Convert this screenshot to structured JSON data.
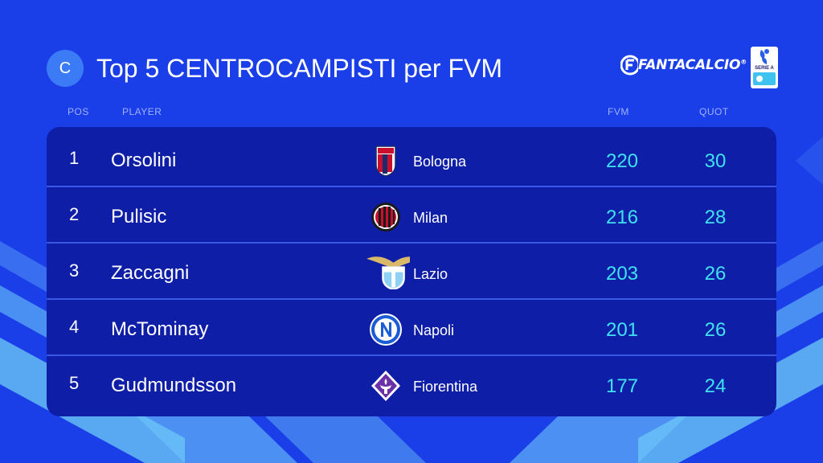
{
  "header": {
    "badge_letter": "C",
    "title": "Top 5 CENTROCAMPISTI per FVM",
    "brand_name": "FANTACALCIO",
    "brand_reg": "®",
    "league_badge_text": "SERIE A"
  },
  "columns": {
    "pos": "POS",
    "player": "PLAYER",
    "fvm": "FVM",
    "quot": "QUOT"
  },
  "rows": [
    {
      "pos": "1",
      "player": "Orsolini",
      "team": "Bologna",
      "crest": "bologna-crest-icon",
      "fvm": "220",
      "quot": "30"
    },
    {
      "pos": "2",
      "player": "Pulisic",
      "team": "Milan",
      "crest": "milan-crest-icon",
      "fvm": "216",
      "quot": "28"
    },
    {
      "pos": "3",
      "player": "Zaccagni",
      "team": "Lazio",
      "crest": "lazio-crest-icon",
      "fvm": "203",
      "quot": "26"
    },
    {
      "pos": "4",
      "player": "McTominay",
      "team": "Napoli",
      "crest": "napoli-crest-icon",
      "fvm": "201",
      "quot": "26"
    },
    {
      "pos": "5",
      "player": "Gudmundsson",
      "team": "Fiorentina",
      "crest": "fiorentina-crest-icon",
      "fvm": "177",
      "quot": "24"
    }
  ],
  "colors": {
    "background": "#1a3fe8",
    "table": "#0f1ea6",
    "accent_values": "#3fe2f2",
    "badge": "#3b7cf6"
  }
}
